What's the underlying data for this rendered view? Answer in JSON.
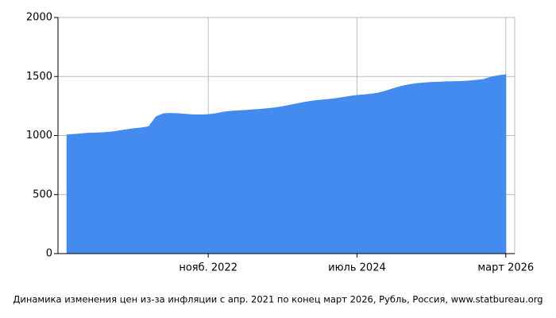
{
  "chart_data": {
    "type": "area",
    "title": "Динамика изменения цен из-за инфляции с апр. 2021 по конец март 2026, Рубль, Россия, www.statbureau.org",
    "color": "#438bef",
    "categories": [
      null,
      null,
      null,
      null,
      null,
      null,
      null,
      null,
      null,
      null,
      null,
      null,
      null,
      null,
      null,
      null,
      null,
      null,
      null,
      "нояб. 2022",
      null,
      null,
      null,
      null,
      null,
      null,
      null,
      null,
      null,
      null,
      null,
      null,
      null,
      null,
      null,
      null,
      null,
      null,
      null,
      "июль 2024",
      null,
      null,
      null,
      null,
      null,
      null,
      null,
      null,
      null,
      null,
      null,
      null,
      null,
      null,
      null,
      null,
      null,
      null,
      null,
      "март 2026"
    ],
    "values": [
      1005,
      1010,
      1015,
      1020,
      1022,
      1025,
      1030,
      1040,
      1050,
      1058,
      1065,
      1075,
      1160,
      1185,
      1188,
      1185,
      1180,
      1175,
      1175,
      1178,
      1185,
      1198,
      1205,
      1210,
      1213,
      1218,
      1222,
      1228,
      1235,
      1245,
      1258,
      1270,
      1282,
      1292,
      1300,
      1305,
      1312,
      1322,
      1332,
      1340,
      1345,
      1352,
      1362,
      1380,
      1400,
      1418,
      1430,
      1440,
      1445,
      1450,
      1452,
      1455,
      1456,
      1458,
      1462,
      1468,
      1475,
      1495,
      1508,
      1515
    ],
    "ylim": [
      0,
      2000
    ],
    "yticks": [
      0,
      500,
      1000,
      1500,
      2000
    ],
    "grid": true
  }
}
